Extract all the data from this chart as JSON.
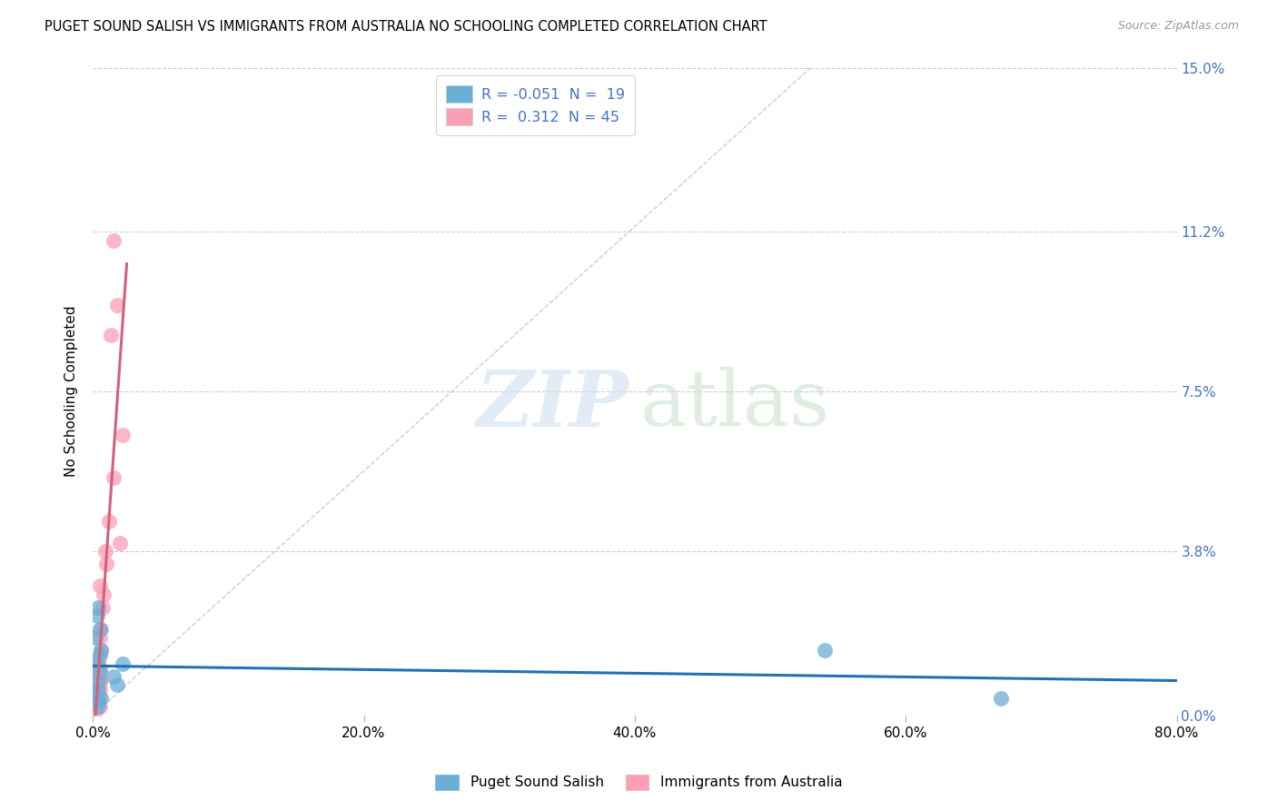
{
  "title": "PUGET SOUND SALISH VS IMMIGRANTS FROM AUSTRALIA NO SCHOOLING COMPLETED CORRELATION CHART",
  "source": "Source: ZipAtlas.com",
  "xlabel_ticks": [
    "0.0%",
    "20.0%",
    "40.0%",
    "60.0%",
    "80.0%"
  ],
  "ylabel_ticks": [
    "0.0%",
    "3.8%",
    "7.5%",
    "11.2%",
    "15.0%"
  ],
  "ylabel_ticks_vals": [
    0.0,
    3.8,
    7.5,
    11.2,
    15.0
  ],
  "xlabel_ticks_vals": [
    0.0,
    20.0,
    40.0,
    60.0,
    80.0
  ],
  "xlim": [
    0,
    80
  ],
  "ylim": [
    0,
    15.0
  ],
  "R_blue": -0.051,
  "N_blue": 19,
  "R_pink": 0.312,
  "N_pink": 45,
  "legend_title1": "Puget Sound Salish",
  "legend_title2": "Immigrants from Australia",
  "blue_color": "#6baed6",
  "pink_color": "#fa9fb5",
  "blue_line_color": "#2171b5",
  "pink_line_color": "#d4607a",
  "diag_line_color": "#cccccc",
  "blue_scatter_x": [
    0.3,
    0.5,
    0.2,
    0.4,
    0.6,
    0.3,
    0.5,
    0.4,
    0.2,
    0.3,
    0.6,
    0.4,
    0.3,
    0.5,
    1.5,
    2.2,
    1.8,
    54.0,
    67.0
  ],
  "blue_scatter_y": [
    2.3,
    2.0,
    1.8,
    2.5,
    1.5,
    1.2,
    1.0,
    0.8,
    0.5,
    0.3,
    0.4,
    0.2,
    0.6,
    1.4,
    0.9,
    1.2,
    0.7,
    1.5,
    0.4
  ],
  "pink_scatter_x": [
    0.5,
    0.3,
    0.2,
    0.4,
    0.3,
    0.2,
    0.4,
    0.5,
    0.3,
    0.4,
    0.3,
    0.2,
    0.4,
    0.3,
    0.5,
    0.4,
    0.3,
    0.5,
    0.4,
    0.3,
    0.4,
    0.5,
    0.3,
    0.4,
    0.5,
    0.4,
    0.3,
    0.5,
    0.6,
    0.4,
    0.5,
    0.6,
    0.7,
    0.5,
    1.0,
    1.2,
    0.8,
    0.9,
    1.5,
    1.8,
    2.0,
    2.2,
    1.5,
    1.3,
    0.4
  ],
  "pink_scatter_y": [
    0.2,
    0.3,
    0.1,
    0.4,
    0.5,
    0.2,
    0.6,
    0.8,
    0.3,
    0.9,
    0.4,
    0.7,
    1.0,
    0.5,
    0.6,
    0.3,
    0.4,
    0.8,
    1.2,
    0.7,
    0.5,
    1.0,
    0.3,
    0.6,
    0.8,
    0.4,
    0.9,
    1.1,
    1.5,
    0.6,
    1.8,
    2.0,
    2.5,
    3.0,
    3.5,
    4.5,
    2.8,
    3.8,
    5.5,
    9.5,
    4.0,
    6.5,
    11.0,
    8.8,
    1.3
  ]
}
